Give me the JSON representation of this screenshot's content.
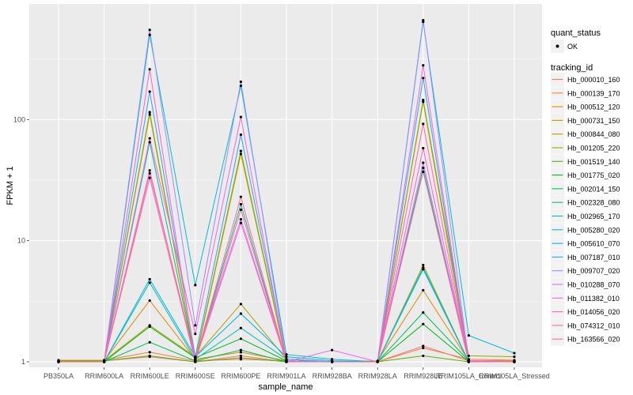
{
  "chart_data": {
    "type": "line",
    "xlabel": "sample_name",
    "ylabel": "FPKM + 1",
    "y_scale": "log10",
    "ylim": [
      0.9,
      900
    ],
    "y_ticks": [
      1,
      10,
      100
    ],
    "y_tick_labels": [
      "1",
      "10",
      "100"
    ],
    "grid": true,
    "legend_placement": "right",
    "categories": [
      "PB350LA",
      "RRIM600LA",
      "RRIM600LE",
      "RRIM600SE",
      "RRIM600PE",
      "RRIM901LA",
      "RRIM928BA",
      "RRIM928LA",
      "RRIM928LE",
      "RRIM105LA_Control",
      "RRIM105LA_Stressed"
    ],
    "point_legend": {
      "title": "quant_status",
      "entries": [
        "OK"
      ]
    },
    "line_legend": {
      "title": "tracking_id"
    },
    "series": [
      {
        "name": "Hb_000010_160",
        "color": "#F8766D",
        "values": [
          1.02,
          1.02,
          1.1,
          1.0,
          1.12,
          1.0,
          1.0,
          1.0,
          1.35,
          1.02,
          1.02
        ]
      },
      {
        "name": "Hb_000139_170",
        "color": "#EE8044",
        "values": [
          1.03,
          1.03,
          1.2,
          1.02,
          1.05,
          1.02,
          1.0,
          1.0,
          1.3,
          1.05,
          1.03
        ]
      },
      {
        "name": "Hb_000512_120",
        "color": "#DE8C00",
        "values": [
          1.02,
          1.02,
          3.2,
          1.05,
          1.2,
          1.02,
          1.0,
          1.02,
          3.9,
          1.02,
          1.02
        ]
      },
      {
        "name": "Hb_000731_150",
        "color": "#C99800",
        "values": [
          1.0,
          1.0,
          110,
          1.0,
          52,
          1.0,
          1.0,
          1.0,
          140,
          1.0,
          1.0
        ]
      },
      {
        "name": "Hb_000844_080",
        "color": "#AFA100",
        "values": [
          1.0,
          1.02,
          2.0,
          1.1,
          3.0,
          1.05,
          1.0,
          1.0,
          6.3,
          1.0,
          1.0
        ]
      },
      {
        "name": "Hb_001205_220",
        "color": "#8EAB00",
        "values": [
          1.0,
          1.0,
          115,
          1.02,
          55,
          1.02,
          1.0,
          1.0,
          145,
          1.12,
          1.1
        ]
      },
      {
        "name": "Hb_001519_140",
        "color": "#5BB300",
        "values": [
          1.02,
          1.02,
          1.12,
          1.0,
          1.08,
          1.0,
          1.0,
          1.0,
          1.12,
          1.0,
          1.0
        ]
      },
      {
        "name": "Hb_001775_020",
        "color": "#00B81F",
        "values": [
          1.0,
          1.0,
          1.95,
          1.08,
          1.55,
          1.02,
          1.0,
          1.0,
          2.05,
          1.0,
          1.0
        ]
      },
      {
        "name": "Hb_002014_150",
        "color": "#00BC59",
        "values": [
          1.0,
          1.0,
          1.45,
          1.02,
          1.25,
          1.0,
          1.0,
          1.0,
          2.55,
          1.02,
          1.0
        ]
      },
      {
        "name": "Hb_002328_080",
        "color": "#00C08B",
        "values": [
          1.0,
          1.0,
          65,
          1.02,
          20,
          1.0,
          1.0,
          1.0,
          40,
          1.0,
          1.0
        ]
      },
      {
        "name": "Hb_002965_170",
        "color": "#00C0B2",
        "values": [
          1.0,
          1.0,
          4.5,
          1.05,
          1.9,
          1.05,
          1.0,
          1.0,
          6.0,
          1.0,
          1.0
        ]
      },
      {
        "name": "Hb_005280_020",
        "color": "#00BCD6",
        "values": [
          1.0,
          1.0,
          500,
          4.3,
          190,
          1.15,
          1.05,
          1.0,
          640,
          1.65,
          1.18
        ]
      },
      {
        "name": "Hb_005610_070",
        "color": "#00B3F2",
        "values": [
          1.0,
          1.0,
          4.8,
          1.1,
          2.5,
          1.1,
          1.02,
          1.0,
          5.8,
          1.0,
          1.0
        ]
      },
      {
        "name": "Hb_007187_010",
        "color": "#29A3FF",
        "values": [
          1.0,
          1.0,
          170,
          1.1,
          75,
          1.05,
          1.0,
          1.0,
          220,
          1.0,
          1.0
        ]
      },
      {
        "name": "Hb_009707_020",
        "color": "#9C8DFF",
        "values": [
          1.0,
          1.0,
          550,
          2.0,
          205,
          1.02,
          1.0,
          1.0,
          660,
          1.02,
          1.0
        ]
      },
      {
        "name": "Hb_010288_070",
        "color": "#D277FF",
        "values": [
          1.0,
          1.0,
          36,
          1.05,
          15,
          1.0,
          1.0,
          1.0,
          44,
          1.02,
          1.0
        ]
      },
      {
        "name": "Hb_011382_010",
        "color": "#F166E8",
        "values": [
          1.0,
          1.0,
          70,
          1.7,
          105,
          1.0,
          1.25,
          1.0,
          280,
          1.02,
          1.0
        ]
      },
      {
        "name": "Hb_014056_020",
        "color": "#FF61C7",
        "values": [
          1.0,
          1.0,
          260,
          1.02,
          14,
          1.0,
          1.0,
          1.0,
          58,
          1.0,
          1.0
        ]
      },
      {
        "name": "Hb_074312_010",
        "color": "#FF689E",
        "values": [
          1.0,
          1.0,
          38,
          1.02,
          23,
          1.0,
          1.0,
          1.0,
          92,
          1.0,
          1.0
        ]
      },
      {
        "name": "Hb_163566_020",
        "color": "#FF6C91",
        "values": [
          1.0,
          1.0,
          33,
          1.0,
          18,
          1.0,
          1.0,
          1.0,
          37,
          1.0,
          1.0
        ]
      }
    ]
  }
}
